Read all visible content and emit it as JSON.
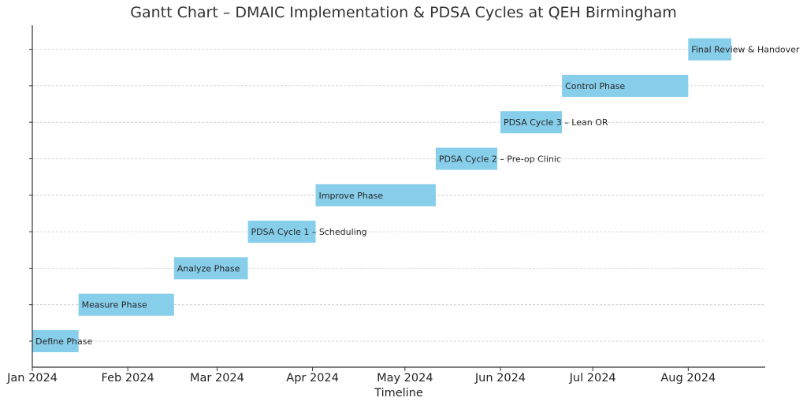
{
  "chart_data": {
    "type": "gantt",
    "title": "Gantt Chart – DMAIC Implementation & PDSA Cycles at QEH Birmingham",
    "xlabel": "Timeline",
    "ylabel": "",
    "xlim": [
      "2024-01-01",
      "2024-08-26"
    ],
    "x_ticks": [
      {
        "date": "2024-01-01",
        "label": "Jan 2024"
      },
      {
        "date": "2024-02-01",
        "label": "Feb 2024"
      },
      {
        "date": "2024-03-01",
        "label": "Mar 2024"
      },
      {
        "date": "2024-04-01",
        "label": "Apr 2024"
      },
      {
        "date": "2024-05-01",
        "label": "May 2024"
      },
      {
        "date": "2024-06-01",
        "label": "Jun 2024"
      },
      {
        "date": "2024-07-01",
        "label": "Jul 2024"
      },
      {
        "date": "2024-08-01",
        "label": "Aug 2024"
      }
    ],
    "grid": "horizontal dashed",
    "bar_color": "#87ceeb",
    "tasks": [
      {
        "label": "Define Phase",
        "start": "2024-01-01",
        "end": "2024-01-15"
      },
      {
        "label": "Measure Phase",
        "start": "2024-01-16",
        "end": "2024-02-15"
      },
      {
        "label": "Analyze Phase",
        "start": "2024-02-16",
        "end": "2024-03-10"
      },
      {
        "label": "PDSA Cycle 1 – Scheduling",
        "start": "2024-03-11",
        "end": "2024-04-01"
      },
      {
        "label": "Improve Phase",
        "start": "2024-04-02",
        "end": "2024-05-10"
      },
      {
        "label": "PDSA Cycle 2 – Pre-op Clinic",
        "start": "2024-05-11",
        "end": "2024-05-30"
      },
      {
        "label": "PDSA Cycle 3 – Lean OR",
        "start": "2024-06-01",
        "end": "2024-06-20"
      },
      {
        "label": "Control Phase",
        "start": "2024-06-21",
        "end": "2024-07-31"
      },
      {
        "label": "Final Review & Handover",
        "start": "2024-08-01",
        "end": "2024-08-14"
      }
    ]
  }
}
